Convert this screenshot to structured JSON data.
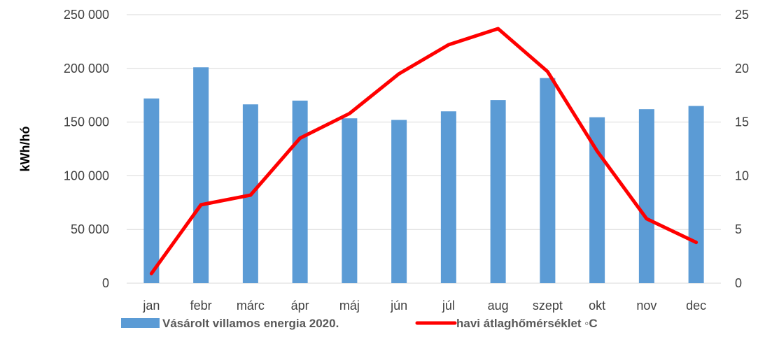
{
  "chart_data": {
    "type": "bar",
    "categories": [
      "jan",
      "febr",
      "márc",
      "ápr",
      "máj",
      "jún",
      "júl",
      "aug",
      "szept",
      "okt",
      "nov",
      "dec"
    ],
    "series": [
      {
        "name": "Vásárolt villamos energia 2020.",
        "type": "bar",
        "axis": "left",
        "color": "#5B9BD5",
        "values": [
          172000,
          201000,
          166500,
          170000,
          153500,
          152000,
          160000,
          170500,
          191000,
          154500,
          162000,
          165000
        ]
      },
      {
        "name": "havi átlaghőmérséklet ◦C",
        "type": "line",
        "axis": "right",
        "color": "#FF0000",
        "values": [
          0.9,
          7.3,
          8.2,
          13.5,
          15.8,
          19.5,
          22.2,
          23.7,
          19.7,
          12.3,
          6.0,
          3.8
        ]
      }
    ],
    "ylabel": "kWh/hó",
    "ylim": [
      0,
      250000
    ],
    "yticks": [
      "0",
      "50 000",
      "100 000",
      "150 000",
      "200 000",
      "250 000"
    ],
    "y2lim": [
      0,
      25
    ],
    "y2ticks": [
      "0",
      "5",
      "10",
      "15",
      "20",
      "25"
    ],
    "grid": true,
    "legend_position": "bottom"
  }
}
